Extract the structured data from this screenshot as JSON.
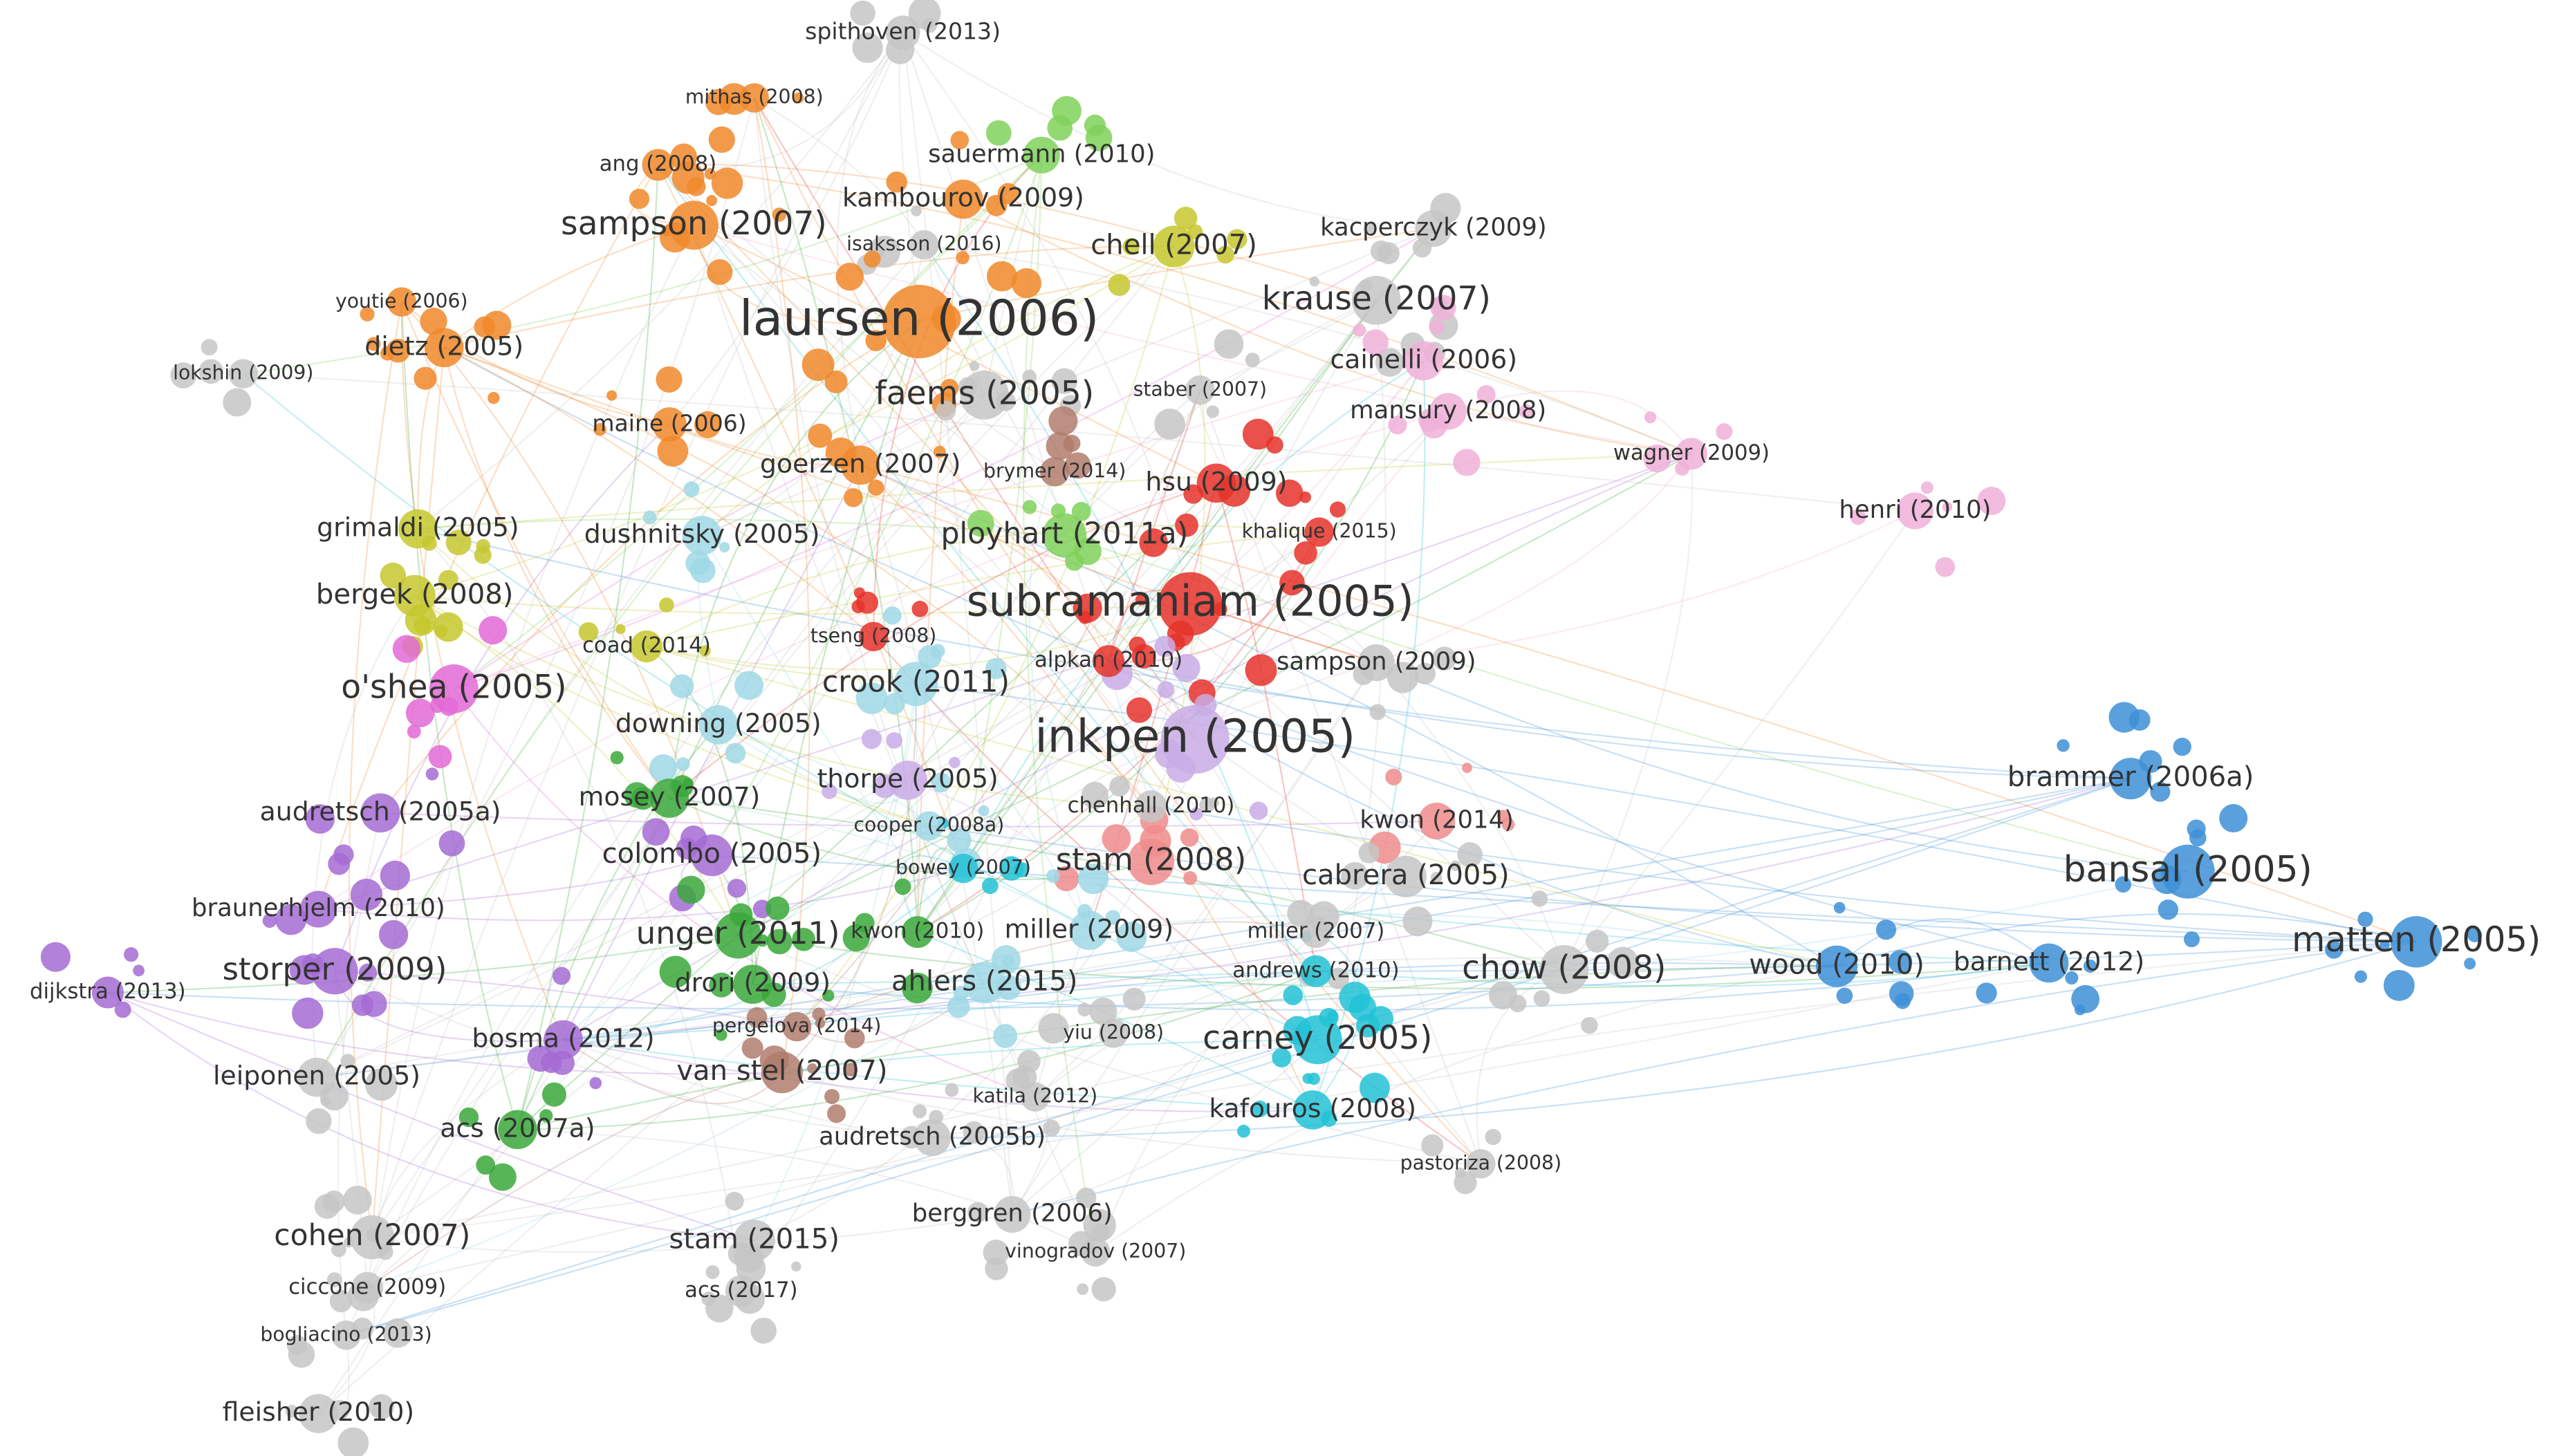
{
  "nodes": [
    {
      "label": "spithoven (2013)"
    },
    {
      "label": "mithas (2008)"
    },
    {
      "label": "sauermann (2010)"
    },
    {
      "label": "ang (2008)"
    },
    {
      "label": "sampson (2007)"
    },
    {
      "label": "kambourov (2009)"
    },
    {
      "label": "chell (2007)"
    },
    {
      "label": "kacperczyk (2009)"
    },
    {
      "label": "isaksson (2016)"
    },
    {
      "label": "youtie (2006)"
    },
    {
      "label": "laursen (2006)"
    },
    {
      "label": "krause (2007)"
    },
    {
      "label": "dietz (2005)"
    },
    {
      "label": "cainelli (2006)"
    },
    {
      "label": "lokshin (2009)"
    },
    {
      "label": "staber (2007)"
    },
    {
      "label": "faems (2005)"
    },
    {
      "label": "mansury (2008)"
    },
    {
      "label": "maine (2006)"
    },
    {
      "label": "wagner (2009)"
    },
    {
      "label": "goerzen (2007)"
    },
    {
      "label": "brymer (2014)"
    },
    {
      "label": "hsu (2009)"
    },
    {
      "label": "henri (2010)"
    },
    {
      "label": "grimaldi (2005)"
    },
    {
      "label": "dushnitsky (2005)"
    },
    {
      "label": "ployhart (2011a)"
    },
    {
      "label": "khalique (2015)"
    },
    {
      "label": "subramaniam (2005)"
    },
    {
      "label": "bergek (2008)"
    },
    {
      "label": "coad (2014)"
    },
    {
      "label": "tseng (2008)"
    },
    {
      "label": "alpkan (2010)"
    },
    {
      "label": "sampson (2009)"
    },
    {
      "label": "o'shea (2005)"
    },
    {
      "label": "crook (2011)"
    },
    {
      "label": "downing (2005)"
    },
    {
      "label": "inkpen (2005)"
    },
    {
      "label": "brammer (2006a)"
    },
    {
      "label": "audretsch (2005a)"
    },
    {
      "label": "thorpe (2005)"
    },
    {
      "label": "mosey (2007)"
    },
    {
      "label": "chenhall (2010)"
    },
    {
      "label": "kwon (2014)"
    },
    {
      "label": "cooper (2008a)"
    },
    {
      "label": "colombo (2005)"
    },
    {
      "label": "stam (2008)"
    },
    {
      "label": "bowey (2007)"
    },
    {
      "label": "cabrera (2005)"
    },
    {
      "label": "bansal (2005)"
    },
    {
      "label": "braunerhjelm (2010)"
    },
    {
      "label": "unger (2011)"
    },
    {
      "label": "kwon (2010)"
    },
    {
      "label": "miller (2009)"
    },
    {
      "label": "miller (2007)"
    },
    {
      "label": "storper (2009)"
    },
    {
      "label": "andrews (2010)"
    },
    {
      "label": "chow (2008)"
    },
    {
      "label": "wood (2010)"
    },
    {
      "label": "barnett (2012)"
    },
    {
      "label": "matten (2005)"
    },
    {
      "label": "dijkstra (2013)"
    },
    {
      "label": "drori (2009)"
    },
    {
      "label": "ahlers (2015)"
    },
    {
      "label": "pergelova (2014)"
    },
    {
      "label": "yiu (2008)"
    },
    {
      "label": "carney (2005)"
    },
    {
      "label": "bosma (2012)"
    },
    {
      "label": "van stel (2007)"
    },
    {
      "label": "leiponen (2005)"
    },
    {
      "label": "katila (2012)"
    },
    {
      "label": "kafouros (2008)"
    },
    {
      "label": "acs (2007a)"
    },
    {
      "label": "audretsch (2005b)"
    },
    {
      "label": "pastoriza (2008)"
    },
    {
      "label": "berggren (2006)"
    },
    {
      "label": "cohen (2007)"
    },
    {
      "label": "stam (2015)"
    },
    {
      "label": "vinogradov (2007)"
    },
    {
      "label": "ciccone (2009)"
    },
    {
      "label": "acs (2017)"
    },
    {
      "label": "bogliacino (2013)"
    },
    {
      "label": "fleisher (2010)"
    }
  ]
}
